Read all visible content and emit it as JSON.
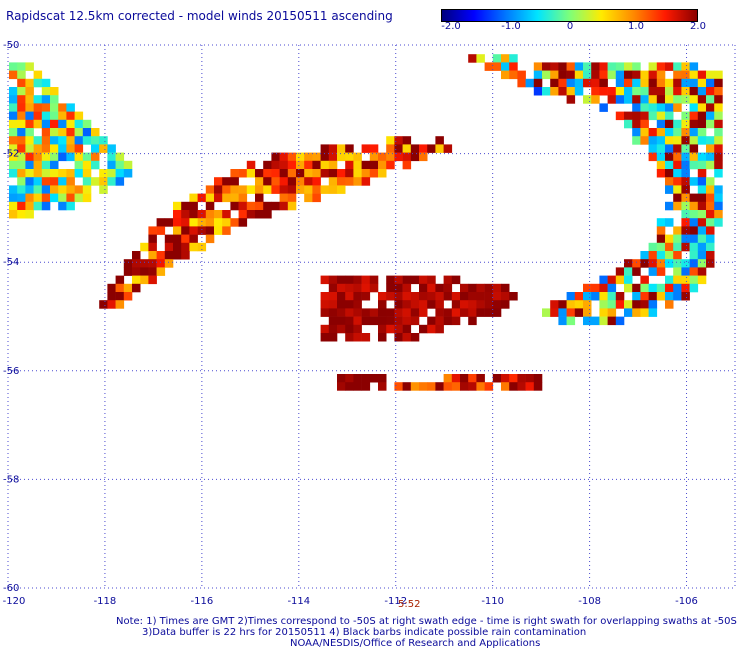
{
  "title": "Rapidscat 12.5km corrected - model winds 20150511 ascending",
  "colorbar": {
    "tick_labels": [
      "-2.0",
      "-1.0",
      "0",
      "1.0",
      "2.0"
    ],
    "colors": [
      "#00007f",
      "#0000ff",
      "#0077ff",
      "#00e5ff",
      "#7dff7a",
      "#ffeb00",
      "#ff8a00",
      "#ff1a00",
      "#8b0000"
    ]
  },
  "lat_labels": [
    "-50",
    "-52",
    "-54",
    "-56",
    "-58",
    "-60"
  ],
  "lon_labels": [
    "-120",
    "-118",
    "-116",
    "-114",
    "-112",
    "-110",
    "-108",
    "-106"
  ],
  "time_label": "5:52",
  "notes": [
    "Note: 1) Times are GMT 2)Times correspond to -50S at right swath edge - time is right swath for overlapping swaths at -50S",
    "3)Data buffer is 22 hrs for 20150511 4) Black barbs indicate possible rain contamination",
    "NOAA/NESDIS/Office of Research and Applications"
  ],
  "chart_data": {
    "type": "heatmap",
    "title": "Rapidscat 12.5km corrected - model winds 20150511 ascending",
    "x_range": [
      -120,
      -105
    ],
    "y_range": [
      -60,
      -50
    ],
    "value_range": [
      -2.0,
      2.0
    ],
    "grid": true,
    "swaths": [
      {
        "lon": [
          -120,
          -117.5
        ],
        "lat": [
          -53.2,
          -50.2
        ],
        "mean_value": 0.3
      },
      {
        "lon": [
          -118.1,
          -110.5
        ],
        "lat": [
          -55,
          -51.6
        ],
        "mean_value": 1.5
      },
      {
        "lon": [
          -113.5,
          -109
        ],
        "lat": [
          -56.5,
          -54.2
        ],
        "mean_value": 1.8
      },
      {
        "lon": [
          -110.5,
          -105
        ],
        "lat": [
          -55.2,
          -50.3
        ],
        "mean_value": 0.8
      }
    ]
  }
}
